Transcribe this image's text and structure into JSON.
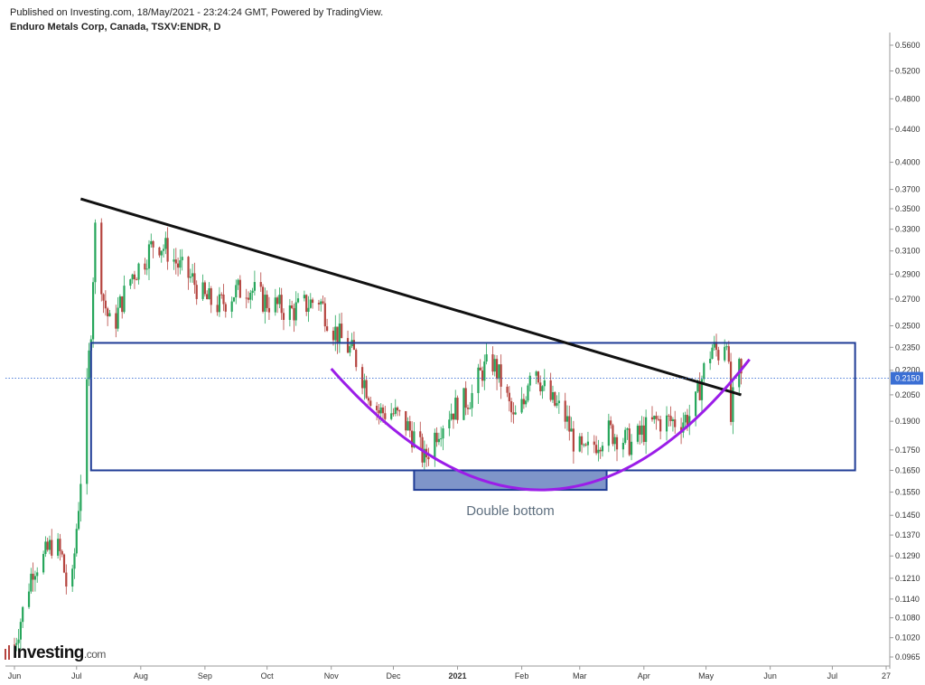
{
  "header": {
    "published": "Published on Investing.com, 18/May/2021 - 23:24:24 GMT, Powered by TradingView.",
    "title": "Enduro Metals Corp, Canada, TSXV:ENDR, D"
  },
  "logo": {
    "brand": "Investing",
    "domain": ".com"
  },
  "colors": {
    "up": "#26a65b",
    "down": "#b5443f",
    "trendline": "#111111",
    "arc": "#9b1de8",
    "box": "#1f3c96",
    "bottom_fill": "#7f95c9",
    "last_price_bg": "#3b6fd4",
    "grid_text": "#333333"
  },
  "chart_data": {
    "type": "candlestick",
    "title": "Enduro Metals Corp, Canada, TSXV:ENDR, D",
    "last_price": "0.2150",
    "y_ticks": [
      "0.5600",
      "0.5200",
      "0.4800",
      "0.4400",
      "0.4000",
      "0.3700",
      "0.3500",
      "0.3300",
      "0.3100",
      "0.2900",
      "0.2700",
      "0.2500",
      "0.2350",
      "0.2200",
      "0.2050",
      "0.1900",
      "0.1750",
      "0.1650",
      "0.1550",
      "0.1450",
      "0.1370",
      "0.1290",
      "0.1210",
      "0.1140",
      "0.1080",
      "0.1020",
      "0.0965"
    ],
    "x_ticks": [
      "Jun",
      "Jul",
      "Aug",
      "Sep",
      "Oct",
      "Nov",
      "Dec",
      "2021",
      "Feb",
      "Mar",
      "Apr",
      "May",
      "Jun",
      "Jul",
      "27"
    ],
    "x_range": [
      "2020-06-01",
      "2021-07-27"
    ],
    "y_scale": "log",
    "price_path": [
      [
        "2020-06-01",
        0.1
      ],
      [
        "2020-06-05",
        0.11
      ],
      [
        "2020-06-10",
        0.125
      ],
      [
        "2020-06-15",
        0.128
      ],
      [
        "2020-06-20",
        0.135
      ],
      [
        "2020-06-24",
        0.128
      ],
      [
        "2020-06-28",
        0.11
      ],
      [
        "2020-07-02",
        0.15
      ],
      [
        "2020-07-05",
        0.185
      ],
      [
        "2020-07-08",
        0.25
      ],
      [
        "2020-07-10",
        0.33
      ],
      [
        "2020-07-14",
        0.27
      ],
      [
        "2020-07-18",
        0.245
      ],
      [
        "2020-07-22",
        0.265
      ],
      [
        "2020-07-28",
        0.29
      ],
      [
        "2020-08-02",
        0.3
      ],
      [
        "2020-08-08",
        0.32
      ],
      [
        "2020-08-14",
        0.31
      ],
      [
        "2020-08-20",
        0.295
      ],
      [
        "2020-08-26",
        0.285
      ],
      [
        "2020-09-01",
        0.27
      ],
      [
        "2020-09-08",
        0.265
      ],
      [
        "2020-09-15",
        0.275
      ],
      [
        "2020-09-22",
        0.28
      ],
      [
        "2020-09-28",
        0.27
      ],
      [
        "2020-10-05",
        0.265
      ],
      [
        "2020-10-12",
        0.26
      ],
      [
        "2020-10-19",
        0.265
      ],
      [
        "2020-10-26",
        0.27
      ],
      [
        "2020-11-01",
        0.25
      ],
      [
        "2020-11-06",
        0.24
      ],
      [
        "2020-11-12",
        0.23
      ],
      [
        "2020-11-18",
        0.21
      ],
      [
        "2020-11-24",
        0.195
      ],
      [
        "2020-11-30",
        0.195
      ],
      [
        "2020-12-06",
        0.19
      ],
      [
        "2020-12-12",
        0.18
      ],
      [
        "2020-12-16",
        0.17
      ],
      [
        "2020-12-22",
        0.185
      ],
      [
        "2020-12-28",
        0.195
      ],
      [
        "2021-01-03",
        0.2
      ],
      [
        "2021-01-08",
        0.205
      ],
      [
        "2021-01-13",
        0.22
      ],
      [
        "2021-01-18",
        0.225
      ],
      [
        "2021-01-23",
        0.21
      ],
      [
        "2021-01-28",
        0.19
      ],
      [
        "2021-02-02",
        0.2
      ],
      [
        "2021-02-06",
        0.23
      ],
      [
        "2021-02-11",
        0.21
      ],
      [
        "2021-02-16",
        0.2
      ],
      [
        "2021-02-21",
        0.195
      ],
      [
        "2021-02-26",
        0.18
      ],
      [
        "2021-03-03",
        0.172
      ],
      [
        "2021-03-08",
        0.178
      ],
      [
        "2021-03-14",
        0.185
      ],
      [
        "2021-03-20",
        0.182
      ],
      [
        "2021-03-26",
        0.178
      ],
      [
        "2021-04-01",
        0.185
      ],
      [
        "2021-04-07",
        0.19
      ],
      [
        "2021-04-13",
        0.19
      ],
      [
        "2021-04-19",
        0.19
      ],
      [
        "2021-04-25",
        0.195
      ],
      [
        "2021-04-30",
        0.22
      ],
      [
        "2021-05-04",
        0.235
      ],
      [
        "2021-05-08",
        0.23
      ],
      [
        "2021-05-11",
        0.245
      ],
      [
        "2021-05-13",
        0.19
      ],
      [
        "2021-05-16",
        0.225
      ],
      [
        "2021-05-18",
        0.215
      ]
    ],
    "annotations": {
      "pattern_label": "Double bottom",
      "trendline": [
        [
          "2020-07-03",
          0.36
        ],
        [
          "2021-05-18",
          0.205
        ]
      ],
      "rectangle": {
        "x": [
          "2020-07-08",
          "2021-07-12"
        ],
        "y": [
          0.165,
          0.238
        ]
      },
      "bottom_zone": {
        "x": [
          "2020-12-11",
          "2021-03-14"
        ],
        "y": [
          0.156,
          0.165
        ]
      },
      "arc": {
        "start": [
          "2020-11-01",
          0.221
        ],
        "bottom": [
          "2021-02-12",
          0.156
        ],
        "end": [
          "2021-05-22",
          0.227
        ]
      }
    }
  }
}
